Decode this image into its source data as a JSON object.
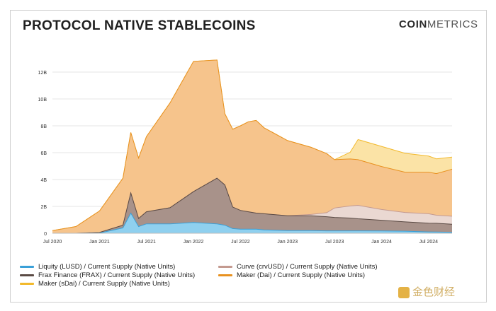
{
  "header": {
    "title": "PROTOCOL NATIVE STABLECOINS",
    "brand_bold": "COIN",
    "brand_light": "METRICS"
  },
  "watermark_text": "金色财经",
  "chart_data": {
    "type": "area",
    "title": "PROTOCOL NATIVE STABLECOINS",
    "xlabel": "",
    "ylabel": "",
    "x_ticks": [
      "Jul 2020",
      "Jan 2021",
      "Jul 2021",
      "Jan 2022",
      "Jul 2022",
      "Jan 2023",
      "Jul 2023",
      "Jan 2024",
      "Jul 2024"
    ],
    "y_ticks": [
      "0",
      "2B",
      "4B",
      "6B",
      "8B",
      "10B",
      "12B"
    ],
    "ylim": [
      0,
      12
    ],
    "x_months": [
      0,
      3,
      6,
      9,
      10,
      11,
      12,
      15,
      18,
      21,
      22,
      23,
      24,
      25,
      26,
      27,
      30,
      33,
      35,
      36,
      38,
      39,
      42,
      45,
      48,
      49,
      51
    ],
    "x_labels": [
      "2020-07",
      "2020-10",
      "2021-01",
      "2021-04",
      "2021-05",
      "2021-06",
      "2021-07",
      "2021-10",
      "2022-01",
      "2022-04",
      "2022-05",
      "2022-06",
      "2022-07",
      "2022-08",
      "2022-09",
      "2022-10",
      "2023-01",
      "2023-04",
      "2023-06",
      "2023-07",
      "2023-09",
      "2023-10",
      "2024-01",
      "2024-04",
      "2024-07",
      "2024-08",
      "2024-10"
    ],
    "legend_position": "bottom",
    "grid": true,
    "series": [
      {
        "name": "Liquity (LUSD) / Current Supply (Native Units)",
        "color": "#3aa0d8",
        "fill": "#8fd0ef",
        "values": [
          0,
          0,
          0.01,
          0.4,
          1.5,
          0.5,
          0.7,
          0.7,
          0.8,
          0.7,
          0.6,
          0.35,
          0.3,
          0.3,
          0.3,
          0.25,
          0.2,
          0.2,
          0.18,
          0.18,
          0.18,
          0.18,
          0.17,
          0.15,
          0.1,
          0.09,
          0.07
        ]
      },
      {
        "name": "Frax Finance (FRAX) / Current Supply (Native Units)",
        "color": "#5a4a44",
        "fill": "#a8928a",
        "values": [
          0,
          0,
          0.05,
          0.2,
          1.5,
          0.6,
          0.9,
          1.2,
          2.3,
          3.4,
          3.0,
          1.6,
          1.4,
          1.3,
          1.2,
          1.2,
          1.1,
          1.1,
          1.05,
          1.0,
          0.95,
          0.9,
          0.8,
          0.7,
          0.65,
          0.65,
          0.6
        ]
      },
      {
        "name": "Curve (crvUSD) / Current Supply (Native Units)",
        "color": "#c49a90",
        "fill": "#ead8d2",
        "values": [
          0,
          0,
          0,
          0,
          0,
          0,
          0,
          0,
          0,
          0,
          0,
          0,
          0,
          0,
          0,
          0,
          0,
          0.1,
          0.3,
          0.7,
          0.9,
          1.0,
          0.8,
          0.7,
          0.7,
          0.6,
          0.6
        ]
      },
      {
        "name": "Maker (Dai) / Current Supply (Native Units)",
        "color": "#e8911f",
        "fill": "#f6c48c",
        "values": [
          0.2,
          0.5,
          1.6,
          3.5,
          4.5,
          4.5,
          5.6,
          7.8,
          9.7,
          8.8,
          5.3,
          5.8,
          6.3,
          6.7,
          6.9,
          6.4,
          5.6,
          5.0,
          4.4,
          3.6,
          3.5,
          3.4,
          3.2,
          3.0,
          3.1,
          3.1,
          3.5
        ]
      },
      {
        "name": "Maker (sDai) / Current Supply (Native Units)",
        "color": "#f2b92c",
        "fill": "#fbe3a6",
        "values": [
          0,
          0,
          0,
          0,
          0,
          0,
          0,
          0,
          0,
          0,
          0,
          0,
          0,
          0,
          0,
          0,
          0,
          0,
          0,
          0,
          0.5,
          1.5,
          1.5,
          1.4,
          1.2,
          1.1,
          0.9
        ]
      }
    ]
  }
}
